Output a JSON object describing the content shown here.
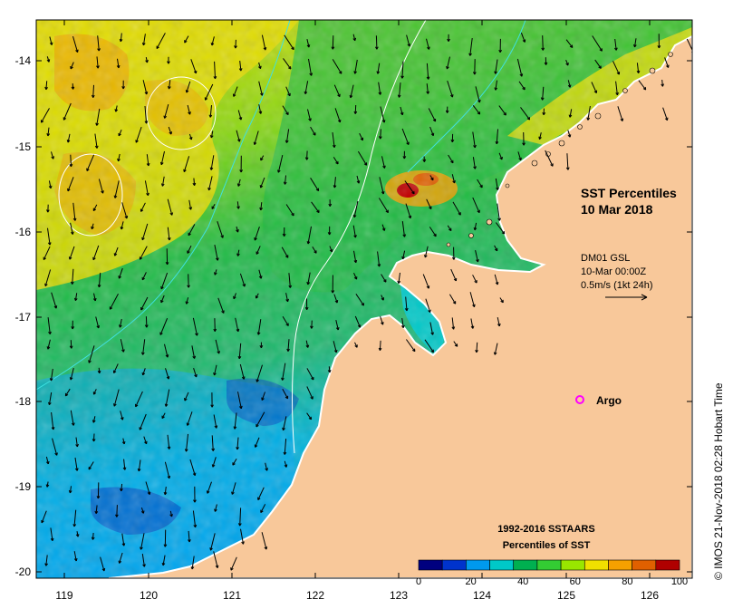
{
  "map": {
    "title_line1": "SST Percentiles",
    "title_line2": "10 Mar 2018",
    "vector_info": {
      "line1": "DM01 GSL",
      "line2": "10-Mar 00:00Z",
      "line3": "0.5m/s (1kt 24h)"
    },
    "argo_label": "Argo",
    "credit": "© IMOS 21-Nov-2018 02:28 Hobart Time",
    "x_ticks": [
      "119",
      "120",
      "121",
      "122",
      "123",
      "124",
      "125",
      "126"
    ],
    "y_ticks": [
      "-14",
      "-15",
      "-16",
      "-17",
      "-18",
      "-19",
      "-20"
    ],
    "legend": {
      "title1": "1992-2016 SSTAARS",
      "title2": "Percentiles of SST",
      "ticks": [
        "0",
        "20",
        "40",
        "60",
        "80",
        "100"
      ],
      "colors": [
        "#00007f",
        "#0033cc",
        "#0099ee",
        "#00c8c8",
        "#00b050",
        "#33cc33",
        "#99e600",
        "#f0e000",
        "#f5a000",
        "#e06000",
        "#b00000"
      ]
    },
    "colors": {
      "land": "#f8c89a",
      "low": "#00a8f0",
      "mid": "#22bb44",
      "high": "#e8e000",
      "warm": "#f09000",
      "argo": "#ff00ff"
    }
  }
}
